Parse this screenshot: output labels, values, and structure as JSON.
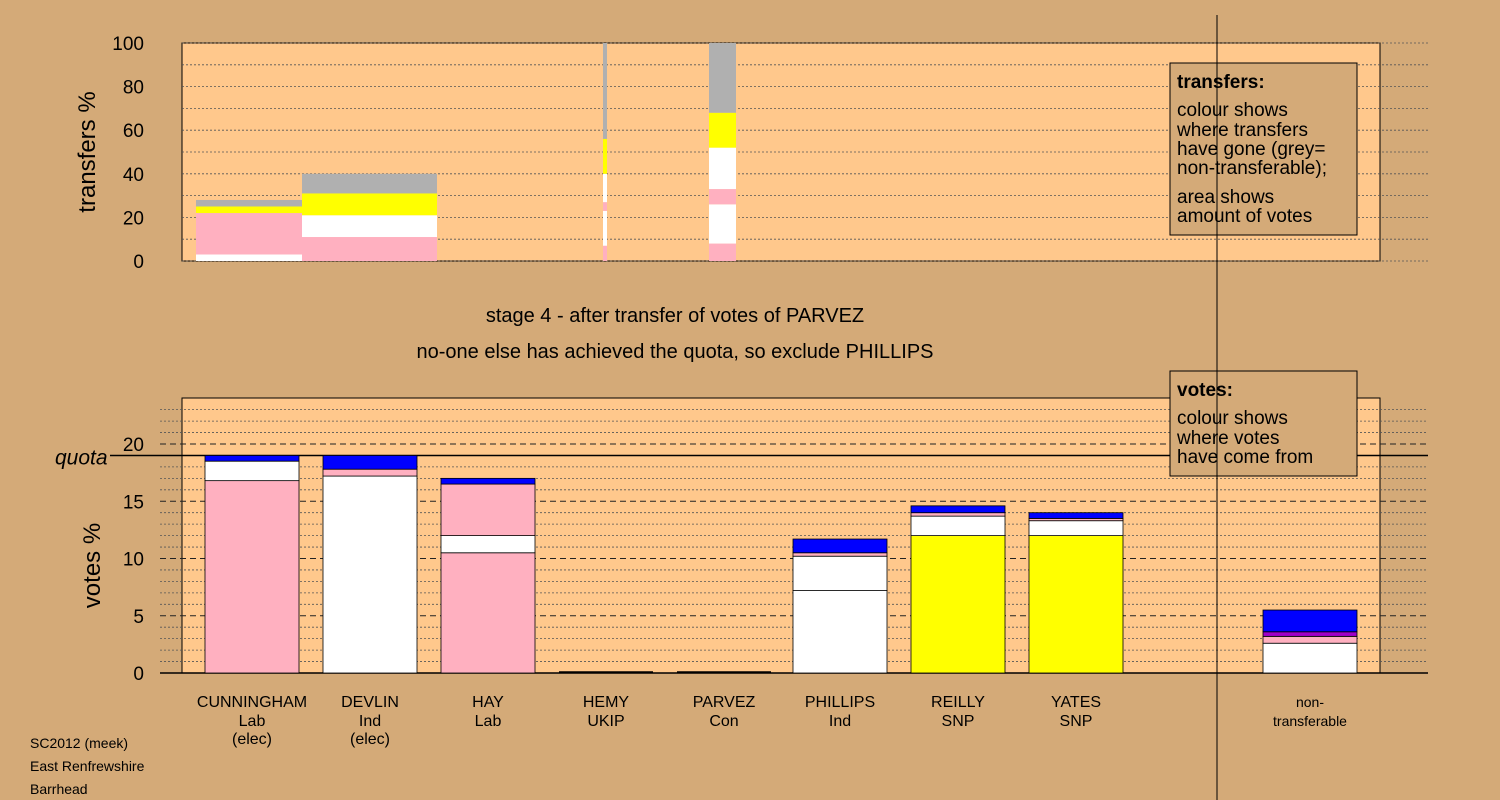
{
  "colors": {
    "background": "#d4aa78",
    "plot_bg": "#ffc88c",
    "Lab": "#ffb0c0",
    "Ind": "#ffffff",
    "SNP": "#ffff00",
    "Con": "#0000ff",
    "UKIP": "#a000c8",
    "nontransferable": "#b0b0b0"
  },
  "chart_data": [
    {
      "type": "bar",
      "subtype": "stacked-transfers",
      "ylabel": "transfers %",
      "ylim": [
        0,
        100
      ],
      "yticks": [
        0,
        20,
        40,
        60,
        80,
        100
      ],
      "legend": {
        "title": "transfers:",
        "lines": [
          "colour shows",
          "where transfers",
          "have gone (grey=",
          "non-transferable);",
          "area shows",
          "amount of votes"
        ]
      },
      "series": [
        {
          "source": "CUNNINGHAM",
          "segments": [
            {
              "party": "Ind",
              "from": 0,
              "to": 3
            },
            {
              "party": "Lab",
              "from": 3,
              "to": 22
            },
            {
              "party": "SNP",
              "from": 22,
              "to": 25
            },
            {
              "party": "nontransferable",
              "from": 25,
              "to": 28
            }
          ]
        },
        {
          "source": "DEVLIN",
          "segments": [
            {
              "party": "Lab",
              "from": 0,
              "to": 11
            },
            {
              "party": "Ind",
              "from": 11,
              "to": 21
            },
            {
              "party": "SNP",
              "from": 21,
              "to": 31
            },
            {
              "party": "nontransferable",
              "from": 31,
              "to": 40
            }
          ]
        },
        {
          "source": "HEMY",
          "segments": [
            {
              "party": "Lab",
              "from": 0,
              "to": 7
            },
            {
              "party": "Ind",
              "from": 7,
              "to": 23
            },
            {
              "party": "Lab",
              "from": 23,
              "to": 27
            },
            {
              "party": "Ind",
              "from": 27,
              "to": 40
            },
            {
              "party": "SNP",
              "from": 40,
              "to": 56
            },
            {
              "party": "nontransferable",
              "from": 56,
              "to": 100
            }
          ]
        },
        {
          "source": "PARVEZ",
          "segments": [
            {
              "party": "Lab",
              "from": 0,
              "to": 8
            },
            {
              "party": "Ind",
              "from": 8,
              "to": 26
            },
            {
              "party": "Lab",
              "from": 26,
              "to": 33
            },
            {
              "party": "Ind",
              "from": 33,
              "to": 52
            },
            {
              "party": "SNP",
              "from": 52,
              "to": 68
            },
            {
              "party": "nontransferable",
              "from": 68,
              "to": 100
            }
          ]
        }
      ]
    },
    {
      "type": "bar",
      "subtype": "stacked-votes",
      "ylabel": "votes %",
      "ylim": [
        0,
        20
      ],
      "yticks": [
        0,
        5,
        10,
        15,
        20
      ],
      "quota": 19,
      "quota_label": "quota",
      "legend": {
        "title": "votes:",
        "lines": [
          "colour shows",
          "where votes",
          "have come from"
        ]
      },
      "categories": [
        {
          "name": "CUNNINGHAM",
          "party": "Lab",
          "note": "(elec)"
        },
        {
          "name": "DEVLIN",
          "party": "Ind",
          "note": "(elec)"
        },
        {
          "name": "HAY",
          "party": "Lab",
          "note": ""
        },
        {
          "name": "HEMY",
          "party": "UKIP",
          "note": ""
        },
        {
          "name": "PARVEZ",
          "party": "Con",
          "note": ""
        },
        {
          "name": "PHILLIPS",
          "party": "Ind",
          "note": ""
        },
        {
          "name": "REILLY",
          "party": "SNP",
          "note": ""
        },
        {
          "name": "YATES",
          "party": "SNP",
          "note": ""
        },
        {
          "name": "non-",
          "party": "transferable",
          "note": ""
        }
      ],
      "stacks": [
        [
          {
            "party": "Lab",
            "from": 0,
            "to": 16.8
          },
          {
            "party": "Ind",
            "from": 16.8,
            "to": 18.5
          },
          {
            "party": "Con",
            "from": 18.5,
            "to": 19.0
          }
        ],
        [
          {
            "party": "Ind",
            "from": 0,
            "to": 17.2
          },
          {
            "party": "Lab",
            "from": 17.2,
            "to": 17.8
          },
          {
            "party": "Con",
            "from": 17.8,
            "to": 19.0
          }
        ],
        [
          {
            "party": "Lab",
            "from": 0,
            "to": 10.5
          },
          {
            "party": "Ind",
            "from": 10.5,
            "to": 12.0
          },
          {
            "party": "Lab",
            "from": 12.0,
            "to": 16.5
          },
          {
            "party": "Con",
            "from": 16.5,
            "to": 17.0
          }
        ],
        [],
        [],
        [
          {
            "party": "Ind",
            "from": 0,
            "to": 7.2
          },
          {
            "party": "Ind",
            "from": 7.2,
            "to": 10.2
          },
          {
            "party": "Lab",
            "from": 10.2,
            "to": 10.5
          },
          {
            "party": "Con",
            "from": 10.5,
            "to": 11.7
          }
        ],
        [
          {
            "party": "SNP",
            "from": 0,
            "to": 12.0
          },
          {
            "party": "Ind",
            "from": 12.0,
            "to": 13.7
          },
          {
            "party": "Lab",
            "from": 13.7,
            "to": 14.0
          },
          {
            "party": "Con",
            "from": 14.0,
            "to": 14.6
          }
        ],
        [
          {
            "party": "SNP",
            "from": 0,
            "to": 12.0
          },
          {
            "party": "Ind",
            "from": 12.0,
            "to": 13.3
          },
          {
            "party": "Lab",
            "from": 13.3,
            "to": 13.5
          },
          {
            "party": "Con",
            "from": 13.5,
            "to": 14.0
          }
        ],
        [
          {
            "party": "Ind",
            "from": 0,
            "to": 2.6
          },
          {
            "party": "Lab",
            "from": 2.6,
            "to": 3.2
          },
          {
            "party": "UKIP",
            "from": 3.2,
            "to": 3.6
          },
          {
            "party": "Con",
            "from": 3.6,
            "to": 5.5
          }
        ]
      ]
    }
  ],
  "stage_title": "stage 4 - after transfer of votes of PARVEZ",
  "stage_subtitle": "no-one else has achieved the quota, so exclude PHILLIPS",
  "footer": [
    "SC2012 (meek)",
    "East Renfrewshire",
    "Barrhead"
  ]
}
